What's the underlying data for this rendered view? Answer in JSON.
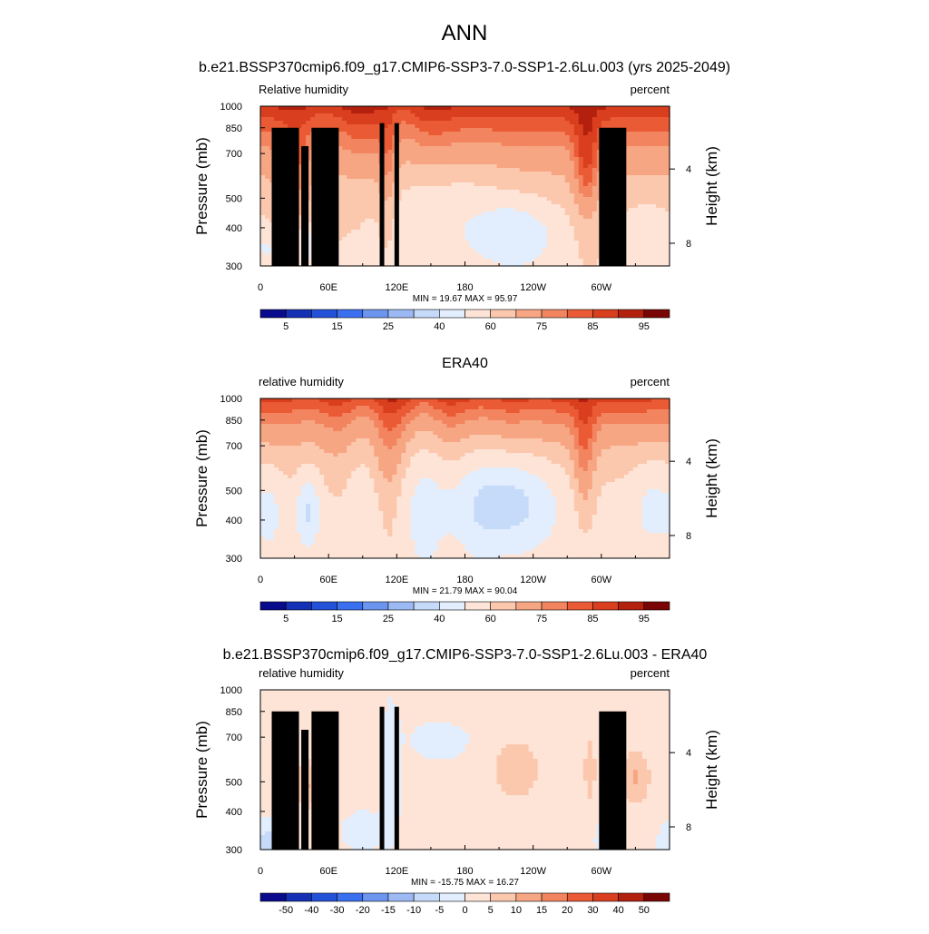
{
  "figure": {
    "title": "ANN",
    "subtitle": "b.e21.BSSP370cmip6.f09_g17.CMIP6-SSP3-7.0-SSP1-2.6Lu.003 (yrs 2025-2049)"
  },
  "chart_data": [
    {
      "type": "heatmap",
      "title": "",
      "left_label": "Relative humidity",
      "right_label": "percent",
      "ylabel": "Pressure (mb)",
      "y2label": "Height (km)",
      "xlabel": "",
      "x_ticks": [
        "0",
        "60E",
        "120E",
        "180",
        "120W",
        "60W"
      ],
      "x_tick_lon": [
        0,
        60,
        120,
        180,
        240,
        300
      ],
      "xlim": [
        0,
        360
      ],
      "ylim": [
        1000,
        300
      ],
      "y_scale": "log",
      "y_ticks": [
        300,
        400,
        500,
        700,
        850,
        1000
      ],
      "y2_ticks": [
        "8",
        "4"
      ],
      "y2_tick_pressure": [
        356,
        623
      ],
      "stats": "MIN =  19.67  MAX =  95.97",
      "colorbar_labels": [
        "5",
        "15",
        "25",
        "40",
        "60",
        "75",
        "85",
        "95"
      ],
      "colorbar_colors": [
        "#0a0a8c",
        "#1430b4",
        "#2352d8",
        "#3a70f0",
        "#6c95ef",
        "#9db9f3",
        "#c6daf9",
        "#e2eefd",
        "#fde4d6",
        "#fbc8ae",
        "#f7a683",
        "#f28560",
        "#ea5a34",
        "#d93f1e",
        "#b3200d",
        "#7a0505"
      ],
      "field": "model",
      "terrain": [
        [
          10,
          850
        ],
        [
          36,
          740
        ],
        [
          45,
          850
        ],
        [
          105,
          880
        ],
        [
          118,
          880
        ],
        [
          298,
          850
        ]
      ],
      "min": 19.67,
      "max": 95.97,
      "grid": false
    },
    {
      "type": "heatmap",
      "title": "ERA40",
      "left_label": "relative humidity",
      "right_label": "percent",
      "ylabel": "Pressure (mb)",
      "y2label": "Height (km)",
      "xlabel": "",
      "x_ticks": [
        "0",
        "60E",
        "120E",
        "180",
        "120W",
        "60W"
      ],
      "x_tick_lon": [
        0,
        60,
        120,
        180,
        240,
        300
      ],
      "xlim": [
        0,
        360
      ],
      "ylim": [
        1000,
        300
      ],
      "y_scale": "log",
      "y_ticks": [
        300,
        400,
        500,
        700,
        850,
        1000
      ],
      "y2_ticks": [
        "8",
        "4"
      ],
      "y2_tick_pressure": [
        356,
        623
      ],
      "stats": "MIN =  21.79  MAX =  90.04",
      "colorbar_labels": [
        "5",
        "15",
        "25",
        "40",
        "60",
        "75",
        "85",
        "95"
      ],
      "colorbar_colors": [
        "#0a0a8c",
        "#1430b4",
        "#2352d8",
        "#3a70f0",
        "#6c95ef",
        "#9db9f3",
        "#c6daf9",
        "#e2eefd",
        "#fde4d6",
        "#fbc8ae",
        "#f7a683",
        "#f28560",
        "#ea5a34",
        "#d93f1e",
        "#b3200d",
        "#7a0505"
      ],
      "field": "obs",
      "terrain": [],
      "min": 21.79,
      "max": 90.04,
      "grid": false
    },
    {
      "type": "heatmap",
      "title": "b.e21.BSSP370cmip6.f09_g17.CMIP6-SSP3-7.0-SSP1-2.6Lu.003 - ERA40",
      "left_label": "relative humidity",
      "right_label": "percent",
      "ylabel": "Pressure (mb)",
      "y2label": "Height (km)",
      "xlabel": "",
      "x_ticks": [
        "0",
        "60E",
        "120E",
        "180",
        "120W",
        "60W"
      ],
      "x_tick_lon": [
        0,
        60,
        120,
        180,
        240,
        300
      ],
      "xlim": [
        0,
        360
      ],
      "ylim": [
        1000,
        300
      ],
      "y_scale": "log",
      "y_ticks": [
        300,
        400,
        500,
        700,
        850,
        1000
      ],
      "y2_ticks": [
        "8",
        "4"
      ],
      "y2_tick_pressure": [
        356,
        623
      ],
      "stats": "MIN = -15.75  MAX =  16.27",
      "colorbar_labels": [
        "-50",
        "-40",
        "-30",
        "-20",
        "-15",
        "-10",
        "-5",
        "0",
        "5",
        "10",
        "15",
        "20",
        "30",
        "40",
        "50"
      ],
      "colorbar_colors": [
        "#0a0a8c",
        "#1430b4",
        "#2352d8",
        "#3a70f0",
        "#6c95ef",
        "#9db9f3",
        "#c6daf9",
        "#e2eefd",
        "#fde4d6",
        "#fbc8ae",
        "#f7a683",
        "#f28560",
        "#ea5a34",
        "#d93f1e",
        "#b3200d",
        "#7a0505"
      ],
      "field": "diff",
      "terrain": [
        [
          10,
          850
        ],
        [
          36,
          740
        ],
        [
          45,
          850
        ],
        [
          105,
          880
        ],
        [
          118,
          880
        ],
        [
          298,
          850
        ]
      ],
      "min": -15.75,
      "max": 16.27,
      "grid": false
    }
  ]
}
